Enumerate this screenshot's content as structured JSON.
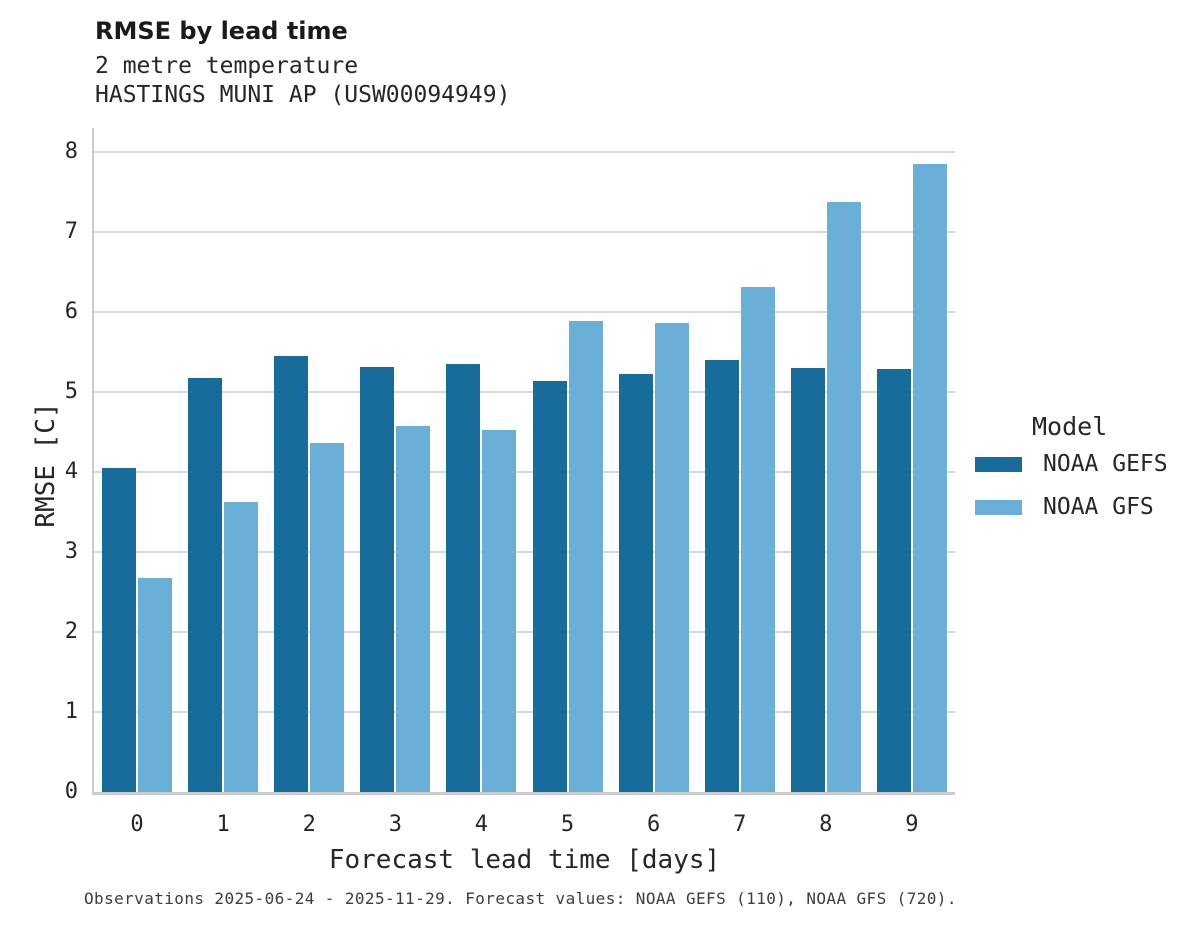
{
  "header": {
    "title": "RMSE by lead time",
    "subtitle_line1": "2 metre temperature",
    "subtitle_line2": "HASTINGS MUNI AP (USW00094949)"
  },
  "legend": {
    "title": "Model"
  },
  "footer": {
    "note": "Observations 2025-06-24 - 2025-11-29. Forecast values: NOAA GEFS (110), NOAA GFS (720)."
  },
  "colors": {
    "gefs": "#186c9c",
    "gfs": "#6aafd8",
    "gridline": "#d9d9d9",
    "spine": "#cccccc"
  },
  "chart_data": {
    "type": "bar",
    "title": "RMSE by lead time",
    "subtitle": [
      "2 metre temperature",
      "HASTINGS MUNI AP (USW00094949)"
    ],
    "xlabel": "Forecast lead time [days]",
    "ylabel": "RMSE [C]",
    "categories": [
      0,
      1,
      2,
      3,
      4,
      5,
      6,
      7,
      8,
      9
    ],
    "series": [
      {
        "name": "NOAA GEFS",
        "color": "#186c9c",
        "values": [
          4.05,
          5.17,
          5.45,
          5.31,
          5.35,
          5.14,
          5.22,
          5.4,
          5.3,
          5.29
        ]
      },
      {
        "name": "NOAA GFS",
        "color": "#6aafd8",
        "values": [
          2.67,
          3.62,
          4.36,
          4.58,
          4.53,
          5.89,
          5.86,
          6.31,
          7.37,
          7.85
        ]
      }
    ],
    "ylim": [
      0,
      8.3
    ],
    "yticks": [
      0,
      1,
      2,
      3,
      4,
      5,
      6,
      7,
      8
    ],
    "grid": "horizontal",
    "legend_position": "right",
    "legend_title": "Model"
  }
}
